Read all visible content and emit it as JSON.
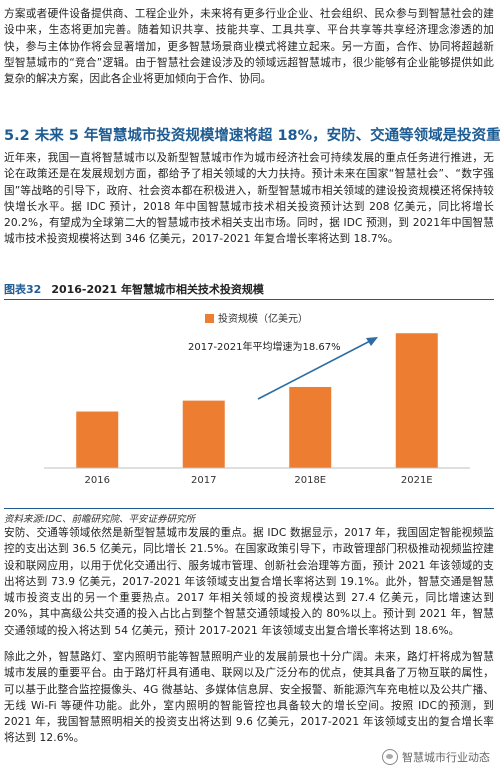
{
  "paragraphs": {
    "p_intro": "方案或者硬件设备提供商、工程企业外，未来将有更多行业企业、社会组织、民众参与到智慧社会的建设中来，生态将更加完善。随着知识共享、技能共享、工具共享、平台共享等共享经济理念渗透的加快，参与主体协作将会显著增加，更多智慧场景商业模式将建立起来。另一方面，合作、协同将超越新型智慧城市的“竞合”逻辑。由于智慧社会建设涉及的领域远超智慧城市，很少能够有企业能够提供如此复杂的解决方案，因此各企业将更加倾向于合作、协同。",
    "p_invest": "近年来，我国一直将智慧城市以及新型智慧城市作为城市经济社会可持续发展的重点任务进行推进，无论在政策还是在发展规划方面，都给予了相关领域的大力扶持。预计未来在国家“智慧社会”、“数字强国”等战略的引导下，政府、社会资本都在积极进入，新型智慧城市相关领域的建设投资规模还将保持较快增长水平。据 IDC 预计，2018 年中国智慧城市技术相关投资预计达到 208 亿美元，同比将增长 20.2%，有望成为全球第二大的智慧城市技术相关支出市场。同时，据 IDC 预测，到 2021年中国智慧城市技术投资规模将达到 346 亿美元，2017-2021 年复合增长率将达到 18.7%。",
    "p_transport": "安防、交通等领域依然是新型智慧城市发展的重点。据 IDC 数据显示，2017 年，我国固定智能视频监控的支出达到 36.5 亿美元，同比增长 21.5%。在国家政策引导下，市政管理部门积极推动视频监控建设和联网应用，以用于优化交通出行、服务城市管理、创新社会治理等方面，预计 2021 年该领域的支出将达到 73.9 亿美元，2017-2021 年该领域支出复合增长率将达到 19.1%。此外，智慧交通是智慧城市投资支出的另一个重要热点。2017 年相关领域的投资规模达到 27.4 亿美元，同比增速达到 20%，其中高级公共交通的投入占比占到整个智慧交通领域投入的 80%以上。预计到 2021 年，智慧交通领域的投入将达到 54 亿美元，预计 2017-2021 年该领域支出复合增长率将达到 18.6%。",
    "p_lighting": "除此之外，智慧路灯、室内照明节能等智慧照明产业的发展前景也十分广阔。未来，路灯杆将成为智慧城市发展的重要平台。由于路灯杆具有通电、联网以及广泛分布的优点，使其具备了万物互联的属性，可以基于此整合监控摄像头、4G 微基站、多媒体信息屏、安全报警、新能源汽车充电桩以及公共广播、无线 Wi-Fi 等硬件功能。此外，室内照明的智能管控也具备较大的增长空间。按照 IDC的预测，到 2021 年，我国智慧照明相关的投资支出将达到 9.6 亿美元，2017-2021 年该领域支出的复合增长率将达到 12.6%。"
  },
  "section": {
    "heading": "5.2 未来 5 年智慧城市投资规模增速将超 18%，安防、交通等领域是投资重点"
  },
  "figure": {
    "label": "图表32",
    "title": "2016-2021 年智慧城市相关技术投资规模",
    "source": "资料来源:IDC、前瞻研究院、平安证券研究所"
  },
  "watermark": {
    "text": "智慧城市行业动态"
  },
  "chart_data": {
    "type": "bar",
    "categories": [
      "2016",
      "2017",
      "2018E",
      "2021E"
    ],
    "series": [
      {
        "name": "投资规模（亿美元）",
        "values": [
          145,
          173,
          208,
          346
        ]
      }
    ],
    "annotation": "2017-2021年平均增速为18.67%",
    "ylim": [
      0,
      380
    ],
    "grid": false,
    "legend": "top-center",
    "bar_color": "#ed7d31"
  }
}
